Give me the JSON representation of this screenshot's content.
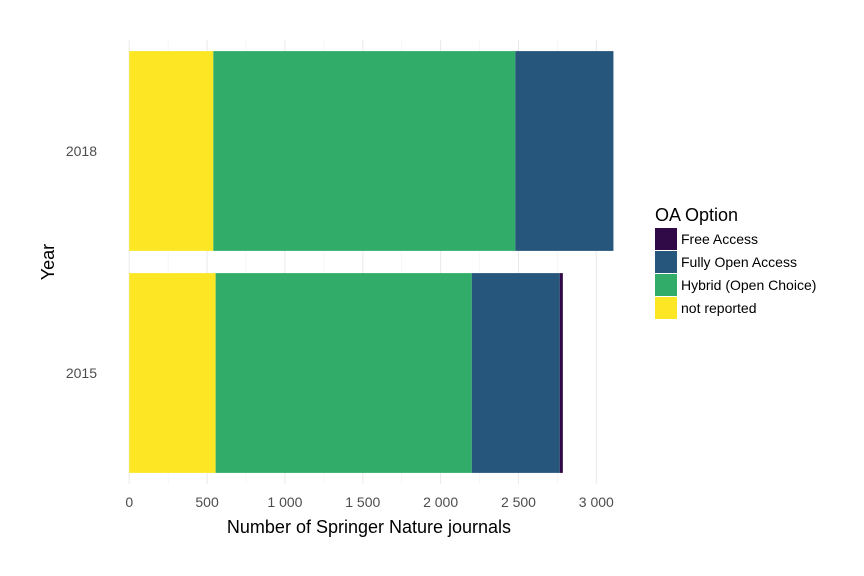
{
  "chart_data": {
    "type": "bar",
    "orientation": "horizontal",
    "stacked": true,
    "xlabel": "Number of Springer Nature journals",
    "ylabel": "Year",
    "categories": [
      "2018",
      "2015"
    ],
    "xlim": [
      -40,
      3120
    ],
    "xticks": [
      0,
      500,
      1000,
      1500,
      2000,
      2500,
      3000
    ],
    "xtick_labels": [
      "0",
      "500",
      "1 000",
      "1 500",
      "2 000",
      "2 500",
      "3 000"
    ],
    "grid": true,
    "legend": {
      "title": "OA Option",
      "position": "right"
    },
    "series": [
      {
        "name": "not reported",
        "color": "#fde725",
        "values": [
          540,
          555
        ]
      },
      {
        "name": "Hybrid (Open Choice)",
        "color": "#31ad69",
        "values": [
          1940,
          1645
        ]
      },
      {
        "name": "Fully Open Access",
        "color": "#27567d",
        "values": [
          630,
          565
        ]
      },
      {
        "name": "Free Access",
        "color": "#2f0a47",
        "values": [
          0,
          20
        ]
      }
    ],
    "legend_order": [
      "Free Access",
      "Fully Open Access",
      "Hybrid (Open Choice)",
      "not reported"
    ]
  }
}
